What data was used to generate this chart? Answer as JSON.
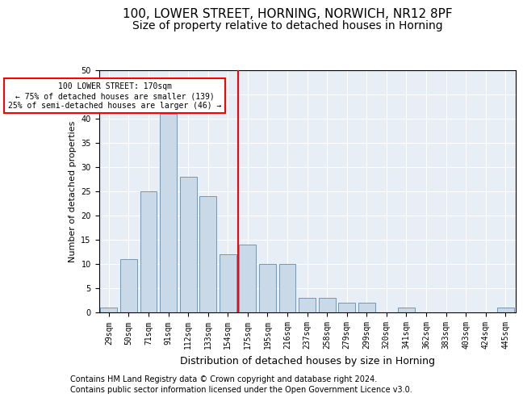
{
  "title1": "100, LOWER STREET, HORNING, NORWICH, NR12 8PF",
  "title2": "Size of property relative to detached houses in Horning",
  "xlabel": "Distribution of detached houses by size in Horning",
  "ylabel": "Number of detached properties",
  "footnote1": "Contains HM Land Registry data © Crown copyright and database right 2024.",
  "footnote2": "Contains public sector information licensed under the Open Government Licence v3.0.",
  "categories": [
    "29sqm",
    "50sqm",
    "71sqm",
    "91sqm",
    "112sqm",
    "133sqm",
    "154sqm",
    "175sqm",
    "195sqm",
    "216sqm",
    "237sqm",
    "258sqm",
    "279sqm",
    "299sqm",
    "320sqm",
    "341sqm",
    "362sqm",
    "383sqm",
    "403sqm",
    "424sqm",
    "445sqm"
  ],
  "values": [
    1,
    11,
    25,
    41,
    28,
    24,
    12,
    14,
    10,
    10,
    3,
    3,
    2,
    2,
    0,
    1,
    0,
    0,
    0,
    0,
    1
  ],
  "bar_color": "#c9d9e8",
  "bar_edge_color": "#6a9abf",
  "vline_x_idx": 7,
  "vline_color": "red",
  "annotation_text": "100 LOWER STREET: 170sqm\n← 75% of detached houses are smaller (139)\n25% of semi-detached houses are larger (46) →",
  "annotation_box_color": "white",
  "annotation_box_edge_color": "red",
  "ylim": [
    0,
    50
  ],
  "yticks": [
    0,
    5,
    10,
    15,
    20,
    25,
    30,
    35,
    40,
    45,
    50
  ],
  "bg_color": "#e8eef5",
  "grid_color": "white",
  "title1_fontsize": 11,
  "title2_fontsize": 10,
  "xlabel_fontsize": 9,
  "ylabel_fontsize": 8,
  "tick_fontsize": 7,
  "footnote_fontsize": 7
}
